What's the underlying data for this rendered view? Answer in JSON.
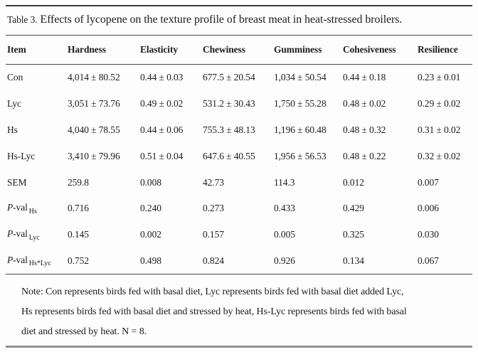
{
  "table": {
    "title_label": "Table 3.",
    "title_text": " Effects of lycopene on the texture profile of breast meat in heat-stressed broilers.",
    "columns": [
      "Item",
      "Hardness",
      "Elasticity",
      "Chewiness",
      "Gumminess",
      "Cohesiveness",
      "Resilience"
    ],
    "rows": [
      {
        "item_main": "Con",
        "values": [
          "4,014 ± 80.52",
          "0.44 ± 0.03",
          "677.5 ± 20.54",
          "1,034 ± 50.54",
          "0.44 ± 0.18",
          "0.23 ± 0.01"
        ]
      },
      {
        "item_main": "Lyc",
        "values": [
          "3,051 ± 73.76",
          "0.49 ± 0.02",
          "531.2 ± 30.43",
          "1,750 ± 55.28",
          "0.48 ± 0.02",
          "0.29 ± 0.02"
        ]
      },
      {
        "item_main": "Hs",
        "values": [
          "4,040 ± 78.55",
          "0.44 ± 0.06",
          "755.3 ± 48.13",
          "1,196 ± 60.48",
          "0.48 ± 0.32",
          "0.31 ± 0.02"
        ]
      },
      {
        "item_main": "Hs-Lyc",
        "values": [
          "3,410 ± 79.96",
          "0.51 ± 0.04",
          "647.6 ± 40.55",
          "1,956 ± 56.53",
          "0.48 ± 0.22",
          "0.32 ± 0.02"
        ]
      },
      {
        "item_main": "SEM",
        "values": [
          "259.8",
          "0.008",
          "42.73",
          "114.3",
          "0.012",
          "0.007"
        ]
      },
      {
        "item_p": "P",
        "item_main": "-val",
        "item_sub": "Hs",
        "values": [
          "0.716",
          "0.240",
          "0.273",
          "0.433",
          "0.429",
          "0.006"
        ]
      },
      {
        "item_p": "P",
        "item_main": "-val",
        "item_sub": "Lyc",
        "values": [
          "0.145",
          "0.002",
          "0.157",
          "0.005",
          "0.325",
          "0.030"
        ]
      },
      {
        "item_p": "P",
        "item_main": "-val",
        "item_sub": "Hs*Lyc",
        "values": [
          "0.752",
          "0.498",
          "0.824",
          "0.926",
          "0.134",
          "0.067"
        ]
      }
    ]
  },
  "note": {
    "lines": [
      "Note: Con represents birds fed with basal diet, Lyc represents birds fed with basal diet added Lyc,",
      "Hs represents birds fed with basal diet and stressed by heat, Hs-Lyc represents birds fed with basal",
      "diet and stressed by heat. N = 8."
    ]
  }
}
